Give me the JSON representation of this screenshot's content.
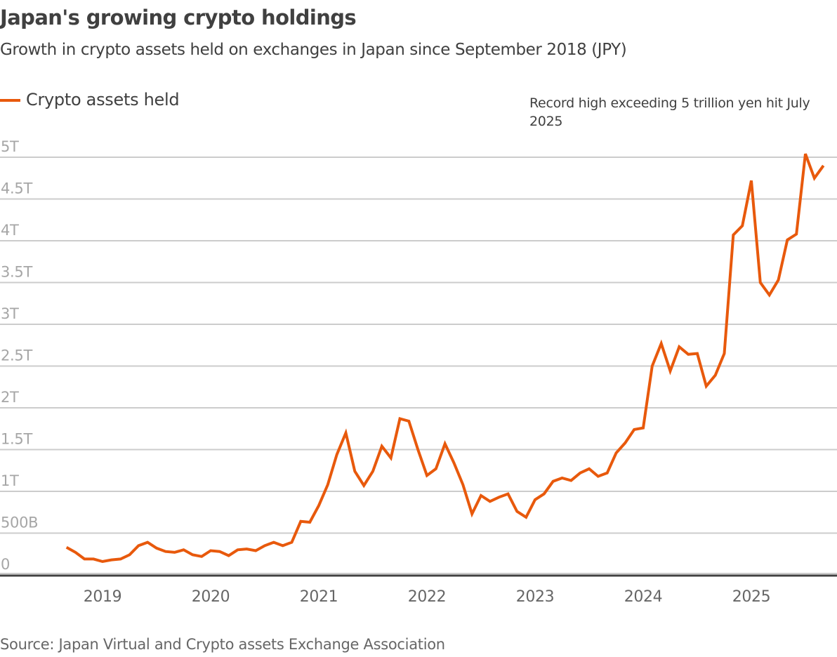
{
  "header": {
    "title": "Japan's growing crypto holdings",
    "subtitle": "Growth in crypto assets held on exchanges in Japan since September 2018 (JPY)"
  },
  "legend": {
    "label": "Crypto assets held",
    "color": "#e8590c"
  },
  "annotation": {
    "text": "Record high exceeding 5 trillion yen hit July 2025"
  },
  "footer": {
    "source": "Source: Japan Virtual and Crypto assets Exchange Association"
  },
  "colors": {
    "line": "#e8590c",
    "grid": "#cccccc",
    "axis": "#404040"
  },
  "chart_data": {
    "type": "line",
    "title": "Japan's growing crypto holdings",
    "subtitle": "Growth in crypto assets held on exchanges in Japan since September 2018 (JPY)",
    "xlabel": "",
    "ylabel": "",
    "unit": "trillion JPY",
    "ylim": [
      0,
      5
    ],
    "grid": true,
    "legend_position": "top-left",
    "yticks": [
      {
        "value": 0,
        "label": "0"
      },
      {
        "value": 0.5,
        "label": "500B"
      },
      {
        "value": 1,
        "label": "1T"
      },
      {
        "value": 1.5,
        "label": "1.5T"
      },
      {
        "value": 2,
        "label": "2T"
      },
      {
        "value": 2.5,
        "label": "2.5T"
      },
      {
        "value": 3,
        "label": "3T"
      },
      {
        "value": 3.5,
        "label": "3.5T"
      },
      {
        "value": 4,
        "label": "4T"
      },
      {
        "value": 4.5,
        "label": "4.5T"
      },
      {
        "value": 5,
        "label": "5T"
      }
    ],
    "xticks": [
      {
        "value": 2019,
        "label": "2019"
      },
      {
        "value": 2020,
        "label": "2020"
      },
      {
        "value": 2021,
        "label": "2021"
      },
      {
        "value": 2022,
        "label": "2022"
      },
      {
        "value": 2023,
        "label": "2023"
      },
      {
        "value": 2024,
        "label": "2024"
      },
      {
        "value": 2025,
        "label": "2025"
      }
    ],
    "xlim": [
      2018.55,
      2026.05
    ],
    "x_start": "2018-09",
    "x_frequency": "monthly",
    "series": [
      {
        "name": "Crypto assets held",
        "color": "#e8590c",
        "values": [
          0.33,
          0.27,
          0.19,
          0.19,
          0.16,
          0.18,
          0.19,
          0.24,
          0.35,
          0.39,
          0.32,
          0.28,
          0.27,
          0.3,
          0.24,
          0.22,
          0.29,
          0.28,
          0.23,
          0.3,
          0.31,
          0.29,
          0.35,
          0.39,
          0.35,
          0.39,
          0.64,
          0.63,
          0.83,
          1.08,
          1.44,
          1.7,
          1.24,
          1.07,
          1.24,
          1.54,
          1.4,
          1.87,
          1.84,
          1.5,
          1.19,
          1.27,
          1.57,
          1.34,
          1.08,
          0.73,
          0.95,
          0.88,
          0.93,
          0.97,
          0.76,
          0.69,
          0.9,
          0.97,
          1.12,
          1.16,
          1.13,
          1.22,
          1.27,
          1.18,
          1.22,
          1.46,
          1.58,
          1.74,
          1.76,
          2.5,
          2.77,
          2.44,
          2.73,
          2.64,
          2.65,
          2.26,
          2.39,
          2.65,
          4.07,
          4.18,
          4.72,
          3.5,
          3.35,
          3.53,
          4.01,
          4.08,
          5.04,
          4.75,
          4.9
        ]
      }
    ],
    "annotations": [
      {
        "text": "Record high exceeding 5 trillion yen hit July 2025",
        "x": "2025-07",
        "y": 5.04
      }
    ]
  }
}
